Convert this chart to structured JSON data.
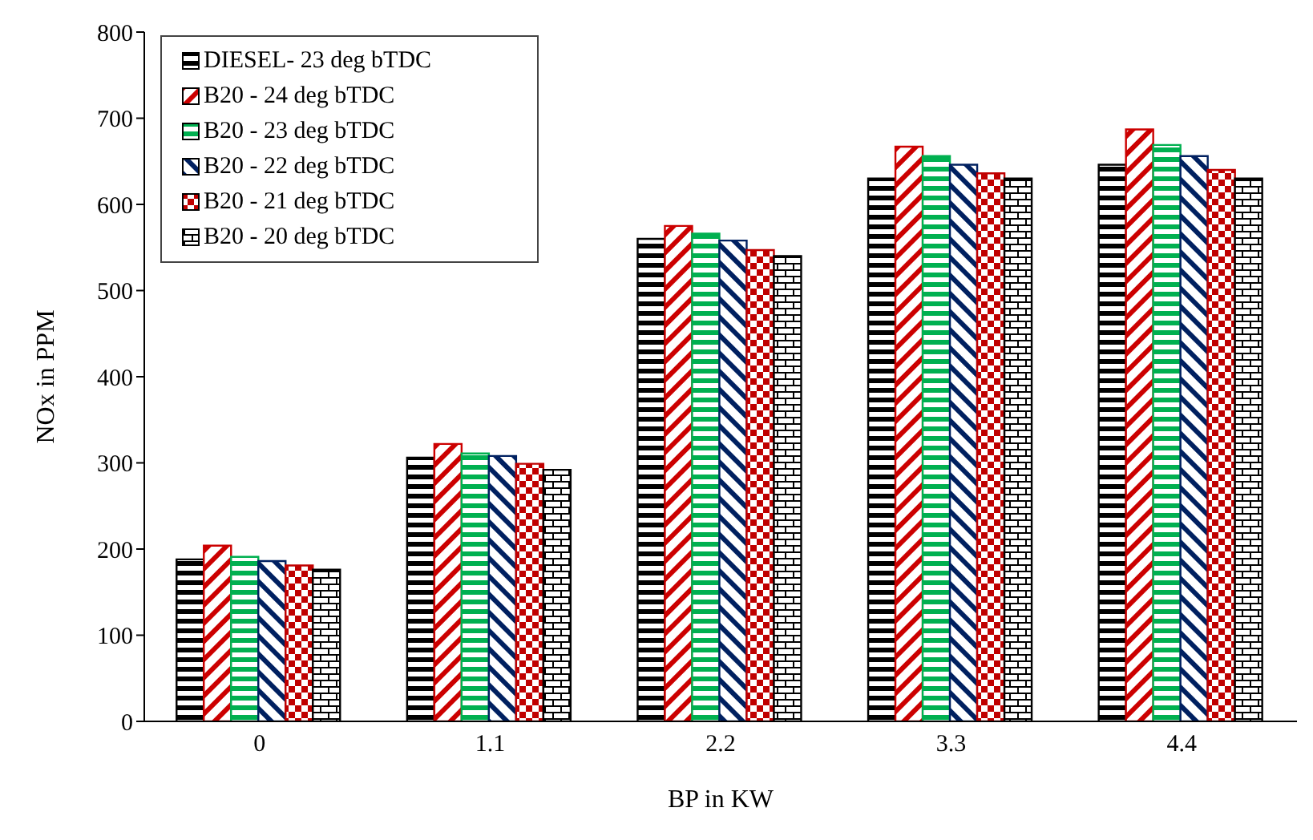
{
  "chart_data": {
    "type": "bar",
    "xlabel": "BP in KW",
    "ylabel": "NOx in PPM",
    "categories": [
      "0",
      "1.1",
      "2.2",
      "3.3",
      "4.4"
    ],
    "series": [
      {
        "name": "DIESEL- 23 deg bTDC",
        "color": "#000000",
        "values": [
          188,
          306,
          560,
          630,
          646
        ]
      },
      {
        "name": "B20 - 24 deg bTDC",
        "color": "#cc0000",
        "values": [
          204,
          322,
          575,
          667,
          687
        ]
      },
      {
        "name": "B20 - 23 deg bTDC",
        "color": "#00b050",
        "values": [
          191,
          311,
          566,
          656,
          669
        ]
      },
      {
        "name": "B20 - 22 deg bTDC",
        "color": "#002060",
        "values": [
          186,
          308,
          558,
          646,
          656
        ]
      },
      {
        "name": "B20 - 21 deg bTDC",
        "color": "#c00000",
        "values": [
          181,
          299,
          547,
          636,
          640
        ]
      },
      {
        "name": "B20 - 20 deg bTDC",
        "color": "#000000",
        "values": [
          176,
          292,
          540,
          630,
          630
        ]
      }
    ],
    "ylim": [
      0,
      800
    ],
    "yticks": [
      0,
      100,
      200,
      300,
      400,
      500,
      600,
      700,
      800
    ],
    "grid": false,
    "legend": "top left"
  }
}
